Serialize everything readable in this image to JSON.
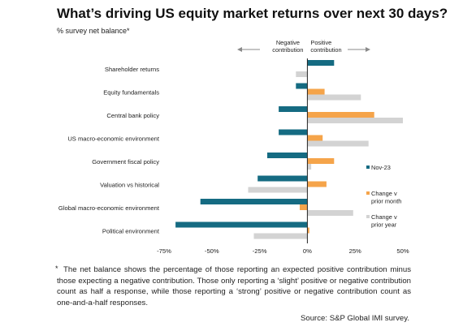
{
  "title": "What’s driving US equity market returns over next 30 days?",
  "subtitle": "% survey net balance*",
  "footnote_marker": "*",
  "footnote": "The net balance shows the percentage of those reporting an expected positive contribution minus those expecting a negative contribution. Those only reporting a ‘slight’ positive or negative contribution count as half a response, while those reporting a ‘strong’ positive or negative contribution count as one-and-a-half responses.",
  "source": "Source: S&P Global IMI survey.",
  "chart_data": {
    "type": "bar",
    "orientation": "horizontal",
    "categories": [
      "Shareholder returns",
      "Equity fundamentals",
      "Central bank policy",
      "US macro-economic environment",
      "Government fiscal policy",
      "Valuation vs historical",
      "Global macro-economic environment",
      "Political environment"
    ],
    "series": [
      {
        "name": "Nov-23",
        "color": "#156b82",
        "values": [
          14,
          -6,
          -15,
          -15,
          -21,
          -26,
          -56,
          -69
        ]
      },
      {
        "name": "Change v prior month",
        "color": "#f5a44a",
        "values": [
          0,
          9,
          35,
          8,
          14,
          10,
          -4,
          1
        ]
      },
      {
        "name": "Change v prior year",
        "color": "#d3d3d3",
        "values": [
          -6,
          28,
          50,
          32,
          2,
          -31,
          24,
          -28
        ]
      }
    ],
    "xlim": [
      -75,
      50
    ],
    "xticks": [
      -75,
      -50,
      -25,
      0,
      25,
      50
    ],
    "xtick_labels": [
      "-75%",
      "-50%",
      "-25%",
      "0%",
      "25%",
      "50%"
    ],
    "annotations": {
      "negative": [
        "Negative",
        "contribution"
      ],
      "positive": [
        "Positive",
        "contribution"
      ]
    },
    "legend": [
      {
        "lines": [
          "Nov-23"
        ],
        "color": "#156b82"
      },
      {
        "lines": [
          "Change v",
          "prior month"
        ],
        "color": "#f5a44a"
      },
      {
        "lines": [
          "Change v",
          "prior year"
        ],
        "color": "#d3d3d3"
      }
    ],
    "legend_position": "right",
    "grid": false
  }
}
